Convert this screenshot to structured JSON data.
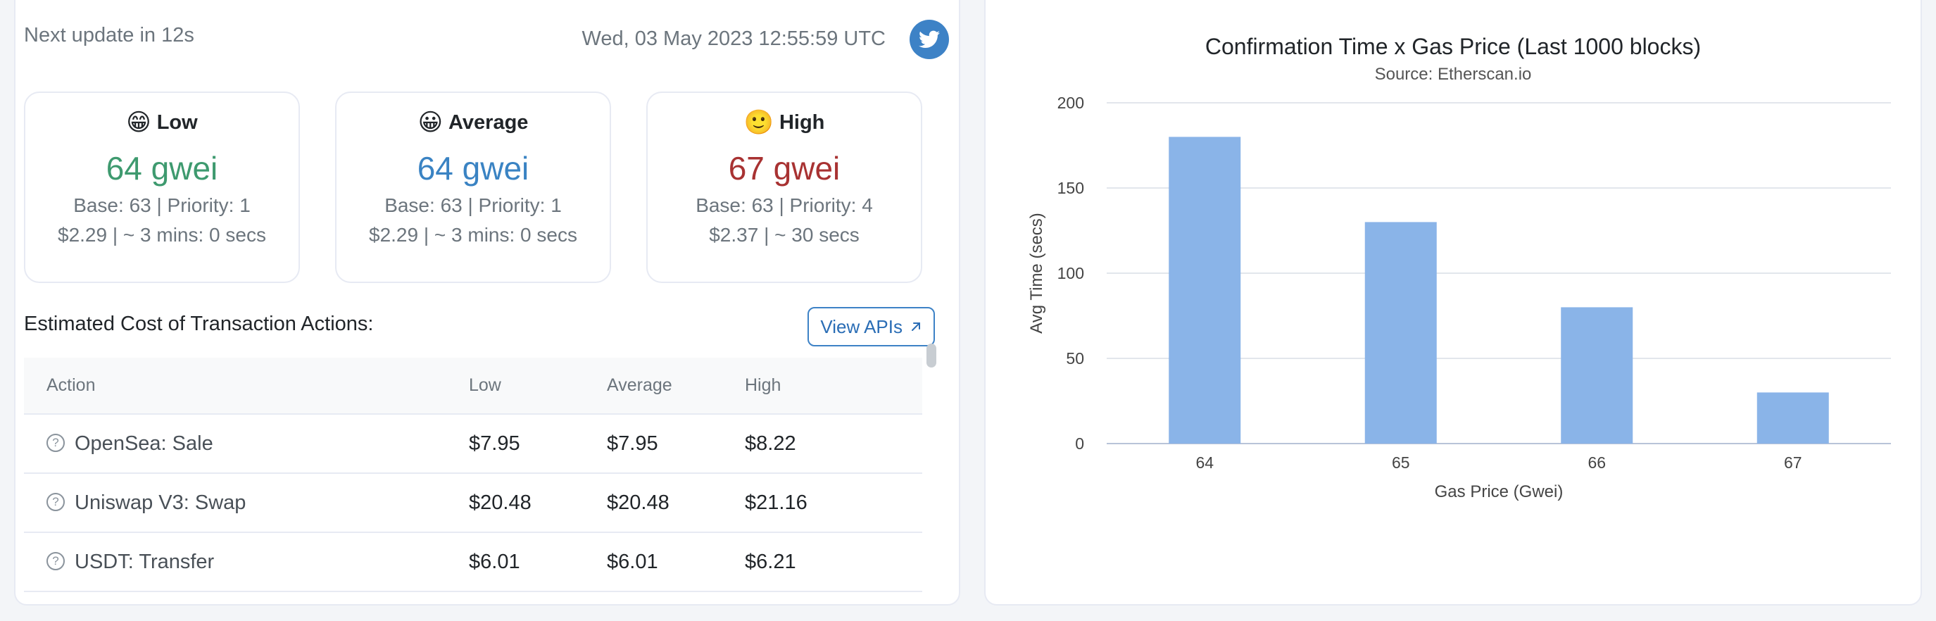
{
  "header": {
    "next_update": "Next update in 12s",
    "timestamp": "Wed, 03 May 2023 12:55:59 UTC",
    "twitter_icon": "twitter-bird-icon"
  },
  "tiers": [
    {
      "emoji": "😁",
      "label": "Low",
      "price": "64 gwei",
      "color": "#3e9a6f",
      "base_priority": "Base: 63 | Priority: 1",
      "cost_time": "$2.29 | ~ 3 mins: 0 secs"
    },
    {
      "emoji": "😀",
      "label": "Average",
      "price": "64 gwei",
      "color": "#3a83c3",
      "base_priority": "Base: 63 | Priority: 1",
      "cost_time": "$2.29 | ~ 3 mins: 0 secs"
    },
    {
      "emoji": "🙂",
      "label": "High",
      "price": "67 gwei",
      "color": "#a83232",
      "base_priority": "Base: 63 | Priority: 4",
      "cost_time": "$2.37 | ~ 30 secs"
    }
  ],
  "estimated": {
    "title": "Estimated Cost of Transaction Actions:",
    "view_apis": "View APIs"
  },
  "table": {
    "headers": [
      "Action",
      "Low",
      "Average",
      "High"
    ],
    "rows": [
      {
        "action": "OpenSea: Sale",
        "low": "$7.95",
        "average": "$7.95",
        "high": "$8.22"
      },
      {
        "action": "Uniswap V3: Swap",
        "low": "$20.48",
        "average": "$20.48",
        "high": "$21.16"
      },
      {
        "action": "USDT: Transfer",
        "low": "$6.01",
        "average": "$6.01",
        "high": "$6.21"
      }
    ]
  },
  "chart_data": {
    "type": "bar",
    "title": "Confirmation Time x Gas Price (Last 1000 blocks)",
    "subtitle": "Source: Etherscan.io",
    "xlabel": "Gas Price (Gwei)",
    "ylabel": "Avg Time (secs)",
    "categories": [
      "64",
      "65",
      "66",
      "67"
    ],
    "values": [
      180,
      130,
      80,
      30
    ],
    "yticks": [
      "0",
      "50",
      "100",
      "150",
      "200"
    ],
    "ylim": [
      0,
      200
    ],
    "bar_color": "#8ab4e8",
    "grid": true,
    "legend": "none"
  }
}
